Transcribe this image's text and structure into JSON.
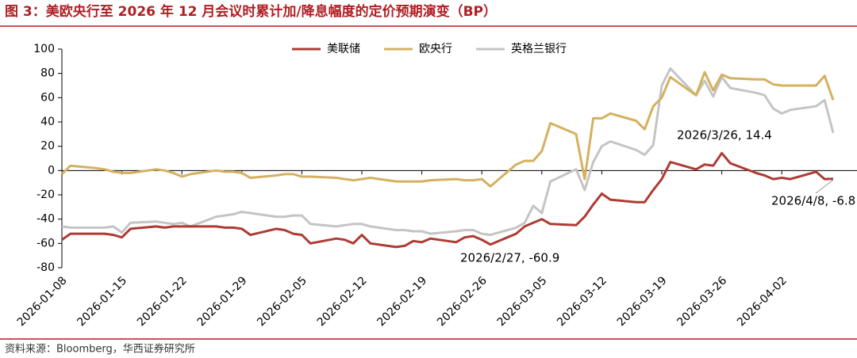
{
  "chart_data": {
    "type": "line",
    "title": "图 3：美欧央行至 2026 年 12 月会议时累计加/降息幅度的定价预期演变（BP）",
    "source": "资料来源：Bloomberg，华西证券研究所",
    "x": [
      "2026-01-08",
      "2026-01-09",
      "2026-01-12",
      "2026-01-13",
      "2026-01-14",
      "2026-01-15",
      "2026-01-16",
      "2026-01-19",
      "2026-01-20",
      "2026-01-21",
      "2026-01-22",
      "2026-01-23",
      "2026-01-26",
      "2026-01-27",
      "2026-01-28",
      "2026-01-29",
      "2026-01-30",
      "2026-02-02",
      "2026-02-03",
      "2026-02-04",
      "2026-02-05",
      "2026-02-06",
      "2026-02-09",
      "2026-02-10",
      "2026-02-11",
      "2026-02-12",
      "2026-02-13",
      "2026-02-16",
      "2026-02-17",
      "2026-02-18",
      "2026-02-19",
      "2026-02-20",
      "2026-02-23",
      "2026-02-24",
      "2026-02-25",
      "2026-02-26",
      "2026-02-27",
      "2026-03-02",
      "2026-03-03",
      "2026-03-04",
      "2026-03-05",
      "2026-03-06",
      "2026-03-09",
      "2026-03-10",
      "2026-03-11",
      "2026-03-12",
      "2026-03-13",
      "2026-03-16",
      "2026-03-17",
      "2026-03-18",
      "2026-03-19",
      "2026-03-20",
      "2026-03-23",
      "2026-03-24",
      "2026-03-25",
      "2026-03-26",
      "2026-03-27",
      "2026-03-30",
      "2026-03-31",
      "2026-04-01",
      "2026-04-02",
      "2026-04-03",
      "2026-04-06",
      "2026-04-07",
      "2026-04-08"
    ],
    "series": [
      {
        "name": "美联储",
        "color": "#ae3b33",
        "values": [
          -57,
          -52,
          -52,
          -52,
          -53,
          -55,
          -48,
          -46,
          -47,
          -46,
          -46,
          -46,
          -46,
          -47,
          -47,
          -48,
          -53,
          -48,
          -49,
          -52,
          -53,
          -60,
          -56,
          -57,
          -60,
          -53,
          -60,
          -63,
          -62,
          -58,
          -59,
          -56,
          -59,
          -55,
          -54,
          -57,
          -60.9,
          -52,
          -46,
          -43,
          -40,
          -44,
          -45,
          -38,
          -28,
          -19,
          -24,
          -26,
          -26,
          -16,
          -7,
          7,
          1,
          5,
          4,
          14.4,
          6,
          -2,
          -4,
          -7,
          -6,
          -7,
          -1,
          -7,
          -6.8
        ]
      },
      {
        "name": "欧央行",
        "color": "#d4b160",
        "values": [
          -3,
          4,
          2,
          1,
          -1,
          -2,
          -2,
          1,
          0,
          -2,
          -5,
          -3,
          0,
          -1,
          -1,
          -2,
          -6,
          -4,
          -3,
          -3,
          -5,
          -5,
          -6,
          -7,
          -8,
          -7,
          -6,
          -9,
          -9,
          -9,
          -9,
          -8,
          -7,
          -8,
          -8,
          -7,
          -13,
          5,
          8,
          8,
          16,
          39,
          30,
          -7,
          43,
          43,
          47,
          41,
          34,
          53,
          60,
          77,
          62,
          81,
          66,
          79,
          76,
          75,
          75,
          71,
          70,
          70,
          70,
          78,
          58
        ]
      },
      {
        "name": "英格兰银行",
        "color": "#c4c4c4",
        "values": [
          -46,
          -47,
          -47,
          -47,
          -46,
          -51,
          -43,
          -42,
          -43,
          -44,
          -43,
          -46,
          -38,
          -37,
          -36,
          -34,
          -35,
          -38,
          -38,
          -37,
          -37,
          -44,
          -46,
          -45,
          -44,
          -44,
          -46,
          -49,
          -49,
          -50,
          -50,
          -52,
          -50,
          -49,
          -49,
          -52,
          -53,
          -47,
          -43,
          -29,
          -35,
          -9,
          1,
          -16,
          7,
          20,
          24,
          17,
          13,
          21,
          70,
          84,
          62,
          74,
          61,
          77,
          68,
          64,
          62,
          51,
          47,
          50,
          53,
          58,
          31
        ]
      }
    ],
    "annotations": [
      "2026/2/27, -60.9",
      "2026/3/26, 14.4",
      "2026/4/8, -6.8"
    ],
    "xlim": [
      "2026-01-08",
      "2026-04-08"
    ],
    "xticks": [
      "2026-01-08",
      "2026-01-15",
      "2026-01-22",
      "2026-01-29",
      "2026-02-05",
      "2026-02-12",
      "2026-02-19",
      "2026-02-26",
      "2026-03-05",
      "2026-03-12",
      "2026-03-19",
      "2026-03-26",
      "2026-04-02"
    ],
    "ylim": [
      -80,
      100
    ],
    "yticks": [
      -80,
      -60,
      -40,
      -20,
      0,
      20,
      40,
      60,
      80,
      100
    ],
    "grid": false,
    "legend": "top"
  }
}
